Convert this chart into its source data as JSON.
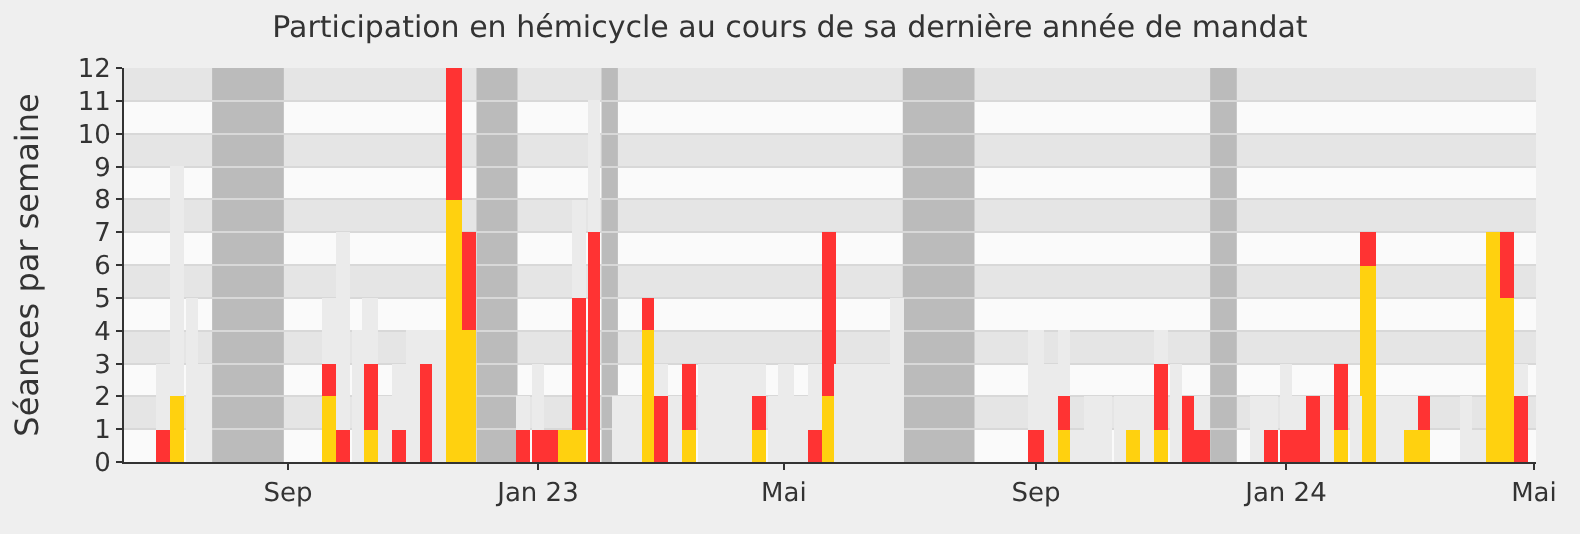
{
  "chart_data": {
    "type": "bar",
    "title": "Participation en hémicycle au cours de sa dernière année de mandat",
    "ylabel": "Séances par semaine",
    "x": [
      "2022-07-02",
      "2022-07-09",
      "2022-07-16",
      "2022-07-22",
      "2022-07-29",
      "2022-08-05",
      "2022-08-12",
      "2022-08-18",
      "2022-08-25",
      "2022-09-01",
      "2022-09-08",
      "2022-09-14",
      "2022-09-21",
      "2022-09-28",
      "2022-10-05",
      "2022-10-11",
      "2022-10-18",
      "2022-10-25",
      "2022-11-01",
      "2022-11-07",
      "2022-11-14",
      "2022-11-21",
      "2022-11-28",
      "2022-12-05",
      "2022-12-11",
      "2022-12-18",
      "2022-12-25",
      "2023-01-01",
      "2023-01-07",
      "2023-01-14",
      "2023-01-21",
      "2023-01-28",
      "2023-02-03",
      "2023-02-10",
      "2023-02-17",
      "2023-02-24",
      "2023-03-02",
      "2023-03-09",
      "2023-03-16",
      "2023-03-23",
      "2023-03-29",
      "2023-04-05",
      "2023-04-12",
      "2023-04-19",
      "2023-04-26",
      "2023-05-02",
      "2023-05-09",
      "2023-05-16",
      "2023-05-23",
      "2023-05-29",
      "2023-06-05",
      "2023-06-12",
      "2023-06-19",
      "2023-06-25",
      "2023-07-02",
      "2023-07-09",
      "2023-07-16",
      "2023-07-22",
      "2023-07-29",
      "2023-08-05",
      "2023-08-12",
      "2023-08-18",
      "2023-08-25",
      "2023-09-01",
      "2023-09-08",
      "2023-09-15",
      "2023-09-21",
      "2023-09-28",
      "2023-10-05",
      "2023-10-12",
      "2023-10-18",
      "2023-10-25",
      "2023-11-01",
      "2023-11-08",
      "2023-11-14",
      "2023-11-21",
      "2023-11-28",
      "2023-12-05",
      "2023-12-11",
      "2023-12-18",
      "2023-12-25",
      "2024-01-01",
      "2024-01-07",
      "2024-01-14",
      "2024-01-21",
      "2024-01-28",
      "2024-02-04",
      "2024-02-10",
      "2024-02-17",
      "2024-02-24",
      "2024-03-02",
      "2024-03-08",
      "2024-03-15",
      "2024-03-22",
      "2024-03-29",
      "2024-04-04",
      "2024-04-11",
      "2024-04-18",
      "2024-04-25"
    ],
    "xlim": [
      "2022-06-13",
      "2024-05-02"
    ],
    "xticks": [
      {
        "value": "2022-09-01",
        "label": "Sep"
      },
      {
        "value": "2023-01-01",
        "label": "Jan 23"
      },
      {
        "value": "2023-05-01",
        "label": "Mai"
      },
      {
        "value": "2023-09-01",
        "label": "Sep"
      },
      {
        "value": "2024-01-01",
        "label": "Jan 24"
      },
      {
        "value": "2024-05-01",
        "label": "Mai"
      }
    ],
    "stacked": true,
    "grid": "y",
    "ylim": [
      0,
      12
    ],
    "yticks": [
      0,
      1,
      2,
      3,
      4,
      5,
      6,
      7,
      8,
      9,
      10,
      11,
      12
    ],
    "bands": [
      {
        "axis": "x",
        "from": "2022-07-26",
        "to": "2022-08-30",
        "color": "#bbbbbb"
      },
      {
        "axis": "x",
        "from": "2022-12-02",
        "to": "2022-12-22",
        "color": "#bbbbbb"
      },
      {
        "axis": "x",
        "from": "2023-02-01",
        "to": "2023-02-09",
        "color": "#bbbbbb"
      },
      {
        "axis": "x",
        "from": "2023-06-28",
        "to": "2023-08-02",
        "color": "#bbbbbb"
      },
      {
        "axis": "x",
        "from": "2023-11-25",
        "to": "2023-12-08",
        "color": "#bbbbbb"
      }
    ],
    "series": [
      {
        "color": "#ffd10f",
        "values": [
          null,
          2,
          null,
          null,
          null,
          null,
          null,
          null,
          null,
          null,
          null,
          null,
          2,
          null,
          null,
          1,
          null,
          null,
          null,
          null,
          null,
          8,
          4,
          null,
          null,
          null,
          null,
          null,
          null,
          1,
          1,
          null,
          null,
          null,
          null,
          4,
          null,
          null,
          1,
          null,
          null,
          null,
          null,
          1,
          null,
          null,
          null,
          null,
          2,
          null,
          null,
          null,
          null,
          null,
          null,
          null,
          null,
          null,
          null,
          null,
          null,
          null,
          null,
          null,
          null,
          1,
          null,
          null,
          null,
          null,
          1,
          null,
          1,
          null,
          null,
          null,
          null,
          null,
          null,
          null,
          null,
          null,
          null,
          null,
          null,
          1,
          null,
          6,
          null,
          null,
          1,
          1,
          null,
          null,
          null,
          null,
          7,
          5,
          null
        ]
      },
      {
        "color": "#ff3333",
        "values": [
          1,
          null,
          null,
          null,
          null,
          null,
          null,
          null,
          null,
          null,
          null,
          null,
          1,
          1,
          null,
          2,
          null,
          1,
          null,
          3,
          null,
          4,
          3,
          null,
          null,
          null,
          1,
          1,
          1,
          null,
          4,
          7,
          null,
          null,
          null,
          1,
          2,
          null,
          2,
          null,
          null,
          null,
          null,
          1,
          null,
          null,
          null,
          1,
          5,
          null,
          null,
          null,
          null,
          null,
          null,
          null,
          null,
          null,
          null,
          null,
          null,
          null,
          null,
          1,
          null,
          1,
          null,
          null,
          null,
          null,
          null,
          null,
          2,
          null,
          2,
          1,
          null,
          null,
          null,
          null,
          1,
          1,
          1,
          2,
          null,
          2,
          null,
          1,
          null,
          null,
          null,
          1,
          null,
          null,
          null,
          null,
          null,
          2,
          2
        ]
      },
      {
        "color": "#ebebeb",
        "values": [
          2,
          7,
          5,
          3,
          null,
          null,
          null,
          null,
          null,
          null,
          null,
          null,
          2,
          6,
          4,
          2,
          2,
          2,
          4,
          1,
          4,
          null,
          null,
          null,
          null,
          null,
          1,
          2,
          null,
          null,
          3,
          4,
          null,
          2,
          2,
          null,
          1,
          2,
          null,
          3,
          3,
          3,
          3,
          1,
          2,
          3,
          2,
          2,
          null,
          3,
          3,
          3,
          3,
          5,
          null,
          null,
          null,
          null,
          null,
          null,
          null,
          null,
          null,
          3,
          3,
          2,
          1,
          2,
          2,
          2,
          1,
          2,
          1,
          3,
          null,
          1,
          null,
          null,
          null,
          2,
          1,
          2,
          1,
          null,
          2,
          null,
          2,
          null,
          2,
          2,
          1,
          null,
          null,
          null,
          2,
          1,
          null,
          null,
          1
        ]
      }
    ]
  }
}
